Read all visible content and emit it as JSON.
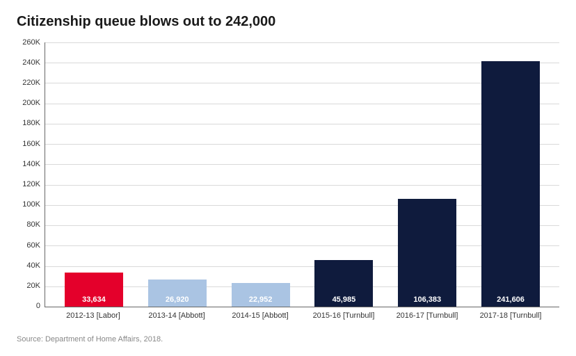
{
  "chart": {
    "type": "bar",
    "title": "Citizenship queue blows out to 242,000",
    "source": "Source: Department of Home Affairs, 2018.",
    "background_color": "#ffffff",
    "grid_color": "#d9d9d9",
    "axis_line_color": "#666666",
    "title_fontsize": 20,
    "label_fontsize": 11,
    "ylim_max": 260000,
    "ytick_step": 20000,
    "yticks": [
      "260K",
      "240K",
      "220K",
      "200K",
      "180K",
      "160K",
      "140K",
      "120K",
      "100K",
      "80K",
      "60K",
      "40K",
      "20K",
      "0"
    ],
    "bar_width_pct": 70,
    "categories": [
      "2012-13 [Labor]",
      "2013-14 [Abbott]",
      "2014-15 [Abbott]",
      "2015-16 [Turnbull]",
      "2016-17 [Turnbull]",
      "2017-18 [Turnbull]"
    ],
    "values": [
      33634,
      26920,
      22952,
      45985,
      106383,
      241606
    ],
    "value_labels": [
      "33,634",
      "26,920",
      "22,952",
      "45,985",
      "106,383",
      "241,606"
    ],
    "bar_colors": [
      "#e4002b",
      "#aac4e3",
      "#aac4e3",
      "#0f1b3d",
      "#0f1b3d",
      "#0f1b3d"
    ],
    "bar_label_color": "#ffffff"
  }
}
